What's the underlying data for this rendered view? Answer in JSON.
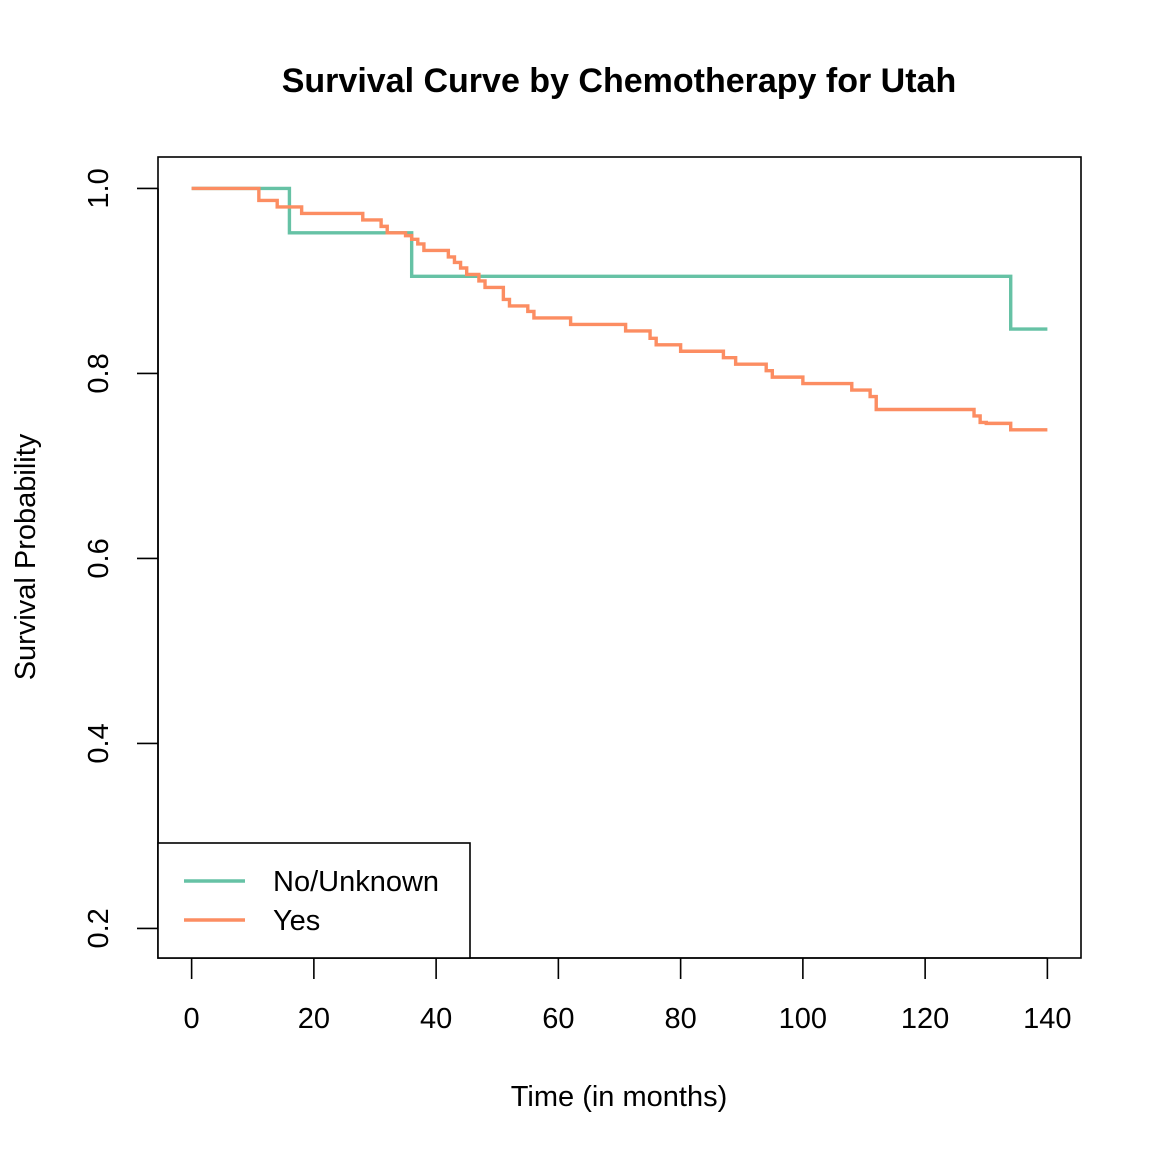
{
  "chart_data": {
    "type": "line",
    "title": "Survival Curve by Chemotherapy for Utah",
    "xlabel": "Time (in months)",
    "ylabel": "Survival Probability",
    "xlim": [
      -5.5,
      145.5
    ],
    "ylim": [
      0.168,
      1.034
    ],
    "xticks": [
      0,
      20,
      40,
      60,
      80,
      100,
      120,
      140
    ],
    "xtick_labels": [
      "0",
      "20",
      "40",
      "60",
      "80",
      "100",
      "120",
      "140"
    ],
    "yticks": [
      0.2,
      0.4,
      0.6,
      0.8,
      1.0
    ],
    "ytick_labels": [
      "0.2",
      "0.4",
      "0.6",
      "0.8",
      "1.0"
    ],
    "grid": false,
    "legend_position": "bottom-left",
    "series": [
      {
        "name": "No/Unknown",
        "color": "#66c2a5",
        "step": true,
        "x": [
          0,
          16,
          36,
          134,
          140
        ],
        "y": [
          1.0,
          0.952,
          0.905,
          0.848,
          0.848
        ]
      },
      {
        "name": "Yes",
        "color": "#fc8d62",
        "step": true,
        "x": [
          0,
          11,
          14,
          18,
          28,
          31,
          32,
          35,
          36,
          37,
          38,
          42,
          43,
          44,
          45,
          47,
          48,
          51,
          52,
          55,
          56,
          62,
          71,
          75,
          76,
          80,
          87,
          89,
          94,
          95,
          100,
          108,
          111,
          112,
          128,
          129,
          130,
          134,
          140
        ],
        "y": [
          1.0,
          0.987,
          0.98,
          0.973,
          0.966,
          0.959,
          0.952,
          0.949,
          0.945,
          0.94,
          0.933,
          0.926,
          0.92,
          0.914,
          0.907,
          0.9,
          0.893,
          0.88,
          0.873,
          0.867,
          0.86,
          0.853,
          0.846,
          0.838,
          0.831,
          0.824,
          0.817,
          0.81,
          0.803,
          0.796,
          0.789,
          0.782,
          0.775,
          0.761,
          0.754,
          0.747,
          0.746,
          0.739,
          0.739
        ]
      }
    ]
  }
}
